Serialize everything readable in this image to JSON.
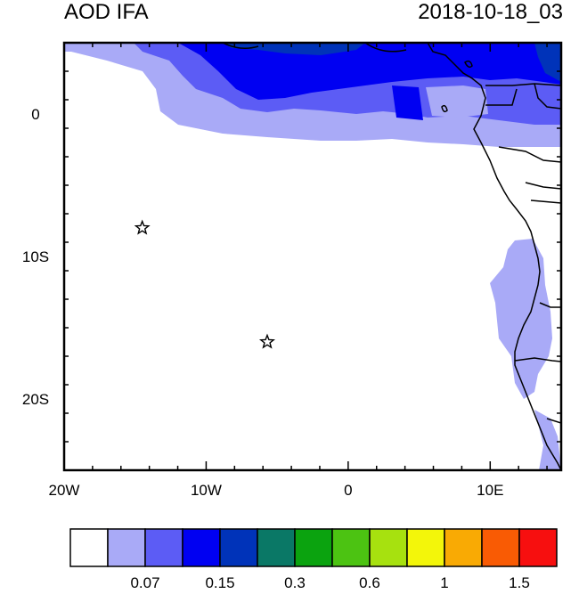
{
  "header": {
    "title": "AOD IFA",
    "timestamp": "2018-10-18_03"
  },
  "map": {
    "lon_range": [
      -20,
      15
    ],
    "lat_range": [
      -25,
      5
    ],
    "x_ticks": [
      {
        "lon": -20,
        "label": "20W"
      },
      {
        "lon": -10,
        "label": "10W"
      },
      {
        "lon": 0,
        "label": "0"
      },
      {
        "lon": 10,
        "label": "10E"
      }
    ],
    "y_ticks": [
      {
        "lat": 0,
        "label": "0"
      },
      {
        "lat": -10,
        "label": "10S"
      },
      {
        "lat": -20,
        "label": "20S"
      }
    ],
    "stars": [
      {
        "lon": -14.5,
        "lat": -8.0
      },
      {
        "lon": -5.7,
        "lat": -16.0
      }
    ]
  },
  "colorbar": {
    "colors": [
      "#ffffff",
      "#a9aaf7",
      "#5c5cf5",
      "#0000f2",
      "#0033b9",
      "#0a7866",
      "#0ba30f",
      "#4cc312",
      "#a7e10f",
      "#f3f60a",
      "#f9aa04",
      "#f95b04",
      "#f70f0f"
    ],
    "tick_labels": [
      {
        "after_box": 2,
        "label": "0.07"
      },
      {
        "after_box": 4,
        "label": "0.15"
      },
      {
        "after_box": 6,
        "label": "0.3"
      },
      {
        "after_box": 8,
        "label": "0.6"
      },
      {
        "after_box": 10,
        "label": "1"
      },
      {
        "after_box": 12,
        "label": "1.5"
      }
    ]
  }
}
